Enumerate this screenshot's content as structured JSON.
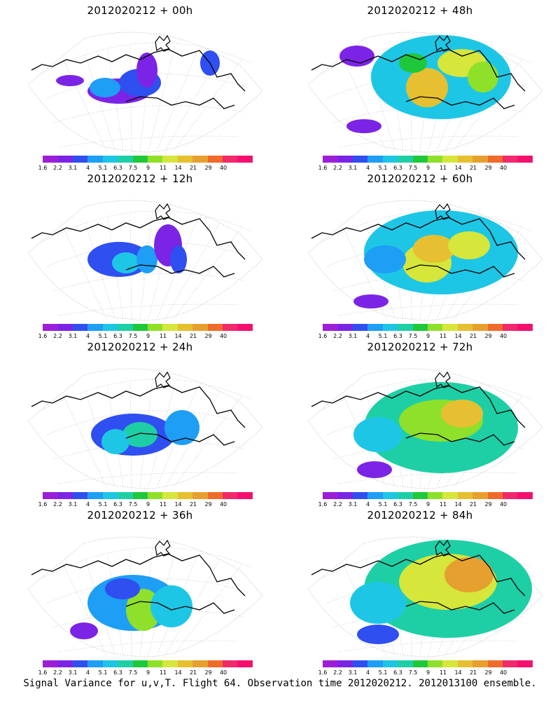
{
  "panels": [
    {
      "title": "2012020212 + 00h",
      "lead": "00h",
      "intensity": 0.25
    },
    {
      "title": "2012020212 + 48h",
      "lead": "48h",
      "intensity": 0.55
    },
    {
      "title": "2012020212 + 12h",
      "lead": "12h",
      "intensity": 0.3
    },
    {
      "title": "2012020212 + 60h",
      "lead": "60h",
      "intensity": 0.6
    },
    {
      "title": "2012020212 + 24h",
      "lead": "24h",
      "intensity": 0.35
    },
    {
      "title": "2012020212 + 72h",
      "lead": "72h",
      "intensity": 0.65
    },
    {
      "title": "2012020212 + 36h",
      "lead": "36h",
      "intensity": 0.4
    },
    {
      "title": "2012020212 + 84h",
      "lead": "84h",
      "intensity": 0.7
    }
  ],
  "colorbar": {
    "labels": [
      "1.6",
      "2.2",
      "3.1",
      "4",
      "5.1",
      "6.3",
      "7.5",
      "9",
      "11",
      "14",
      "21",
      "29",
      "40"
    ],
    "colors": [
      "#9c1fd6",
      "#7b24e6",
      "#2f4ff0",
      "#1e9ef5",
      "#1ec6e6",
      "#1ecfa6",
      "#1ec83a",
      "#8fe02a",
      "#d6e63a",
      "#e6c030",
      "#e6a030",
      "#f06a2a",
      "#f02a6a",
      "#f5106e"
    ]
  },
  "caption": "Signal Variance for u,v,T. Flight 64. Observation time 2012020212. 2012013100 ensemble."
}
